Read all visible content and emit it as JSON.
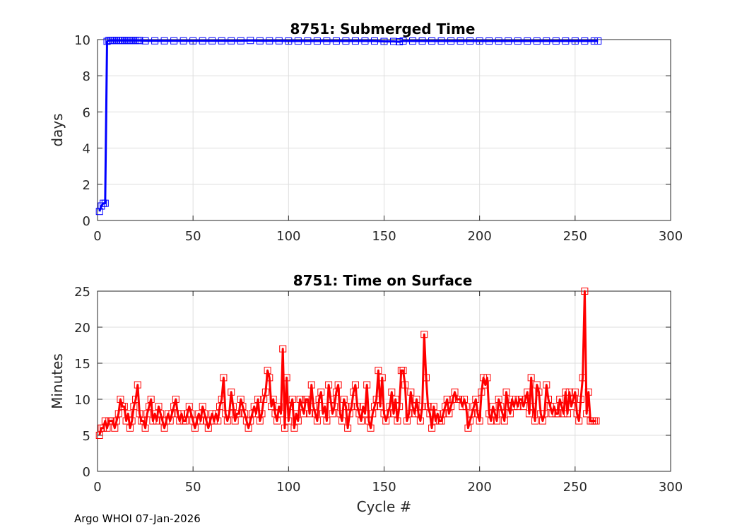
{
  "footer": "Argo WHOI 07-Jan-2026",
  "chart_data": [
    {
      "type": "line",
      "title": "8751: Submerged Time",
      "xlabel": "",
      "ylabel": "days",
      "xlim": [
        0,
        300
      ],
      "ylim": [
        0,
        10
      ],
      "xticks": [
        0,
        50,
        100,
        150,
        200,
        250,
        300
      ],
      "yticks": [
        0,
        2,
        4,
        6,
        8,
        10
      ],
      "grid": true,
      "marker": "square",
      "color": "#0000ff",
      "series": [
        {
          "x": [
            1,
            2,
            3,
            4,
            5,
            6,
            7,
            8,
            9,
            10,
            11,
            12,
            13,
            14,
            15,
            16,
            17,
            18,
            19,
            20,
            21,
            22,
            25,
            30,
            35,
            40,
            45,
            50,
            55,
            60,
            65,
            70,
            75,
            80,
            85,
            90,
            95,
            100,
            105,
            110,
            115,
            120,
            125,
            130,
            135,
            140,
            145,
            150,
            155,
            158,
            160,
            165,
            170,
            175,
            180,
            185,
            190,
            195,
            200,
            205,
            210,
            215,
            220,
            225,
            230,
            235,
            240,
            245,
            250,
            255,
            260,
            262
          ],
          "y": [
            0.5,
            0.8,
            0.95,
            0.95,
            9.9,
            9.95,
            9.95,
            9.95,
            9.95,
            9.95,
            9.95,
            9.95,
            9.95,
            9.95,
            9.95,
            9.95,
            9.95,
            9.95,
            9.95,
            9.95,
            9.95,
            9.95,
            9.93,
            9.93,
            9.93,
            9.93,
            9.93,
            9.93,
            9.93,
            9.93,
            9.93,
            9.93,
            9.93,
            9.95,
            9.93,
            9.93,
            9.93,
            9.92,
            9.92,
            9.92,
            9.92,
            9.92,
            9.92,
            9.92,
            9.92,
            9.92,
            9.92,
            9.9,
            9.9,
            9.88,
            9.92,
            9.92,
            9.92,
            9.92,
            9.92,
            9.92,
            9.92,
            9.92,
            9.92,
            9.92,
            9.92,
            9.92,
            9.92,
            9.92,
            9.92,
            9.92,
            9.92,
            9.92,
            9.92,
            9.92,
            9.92,
            9.92
          ]
        }
      ]
    },
    {
      "type": "line",
      "title": "8751: Time on Surface",
      "xlabel": "Cycle #",
      "ylabel": "Minutes",
      "xlim": [
        0,
        300
      ],
      "ylim": [
        0,
        25
      ],
      "xticks": [
        0,
        50,
        100,
        150,
        200,
        250,
        300
      ],
      "yticks": [
        0,
        5,
        10,
        15,
        20,
        25
      ],
      "grid": true,
      "marker": "square",
      "color": "#ff0000",
      "series": [
        {
          "x": [
            1,
            2,
            3,
            4,
            5,
            6,
            7,
            8,
            9,
            10,
            11,
            12,
            13,
            14,
            15,
            16,
            17,
            18,
            19,
            20,
            21,
            22,
            23,
            24,
            25,
            26,
            27,
            28,
            29,
            30,
            31,
            32,
            33,
            34,
            35,
            36,
            37,
            38,
            39,
            40,
            41,
            42,
            43,
            44,
            45,
            46,
            47,
            48,
            49,
            50,
            51,
            52,
            53,
            54,
            55,
            56,
            57,
            58,
            59,
            60,
            61,
            62,
            63,
            64,
            65,
            66,
            67,
            68,
            69,
            70,
            71,
            72,
            73,
            74,
            75,
            76,
            77,
            78,
            79,
            80,
            81,
            82,
            83,
            84,
            85,
            86,
            87,
            88,
            89,
            90,
            91,
            92,
            93,
            94,
            95,
            96,
            97,
            98,
            99,
            100,
            101,
            102,
            103,
            104,
            105,
            106,
            107,
            108,
            109,
            110,
            111,
            112,
            113,
            114,
            115,
            116,
            117,
            118,
            119,
            120,
            121,
            122,
            123,
            124,
            125,
            126,
            127,
            128,
            129,
            130,
            131,
            132,
            133,
            134,
            135,
            136,
            137,
            138,
            139,
            140,
            141,
            142,
            143,
            144,
            145,
            146,
            147,
            148,
            149,
            150,
            151,
            152,
            153,
            154,
            155,
            156,
            157,
            158,
            159,
            160,
            161,
            162,
            163,
            164,
            165,
            166,
            167,
            168,
            169,
            170,
            171,
            172,
            173,
            174,
            175,
            176,
            177,
            178,
            179,
            180,
            181,
            182,
            183,
            184,
            185,
            186,
            187,
            188,
            189,
            190,
            191,
            192,
            193,
            194,
            195,
            196,
            197,
            198,
            199,
            200,
            201,
            202,
            203,
            204,
            205,
            206,
            207,
            208,
            209,
            210,
            211,
            212,
            213,
            214,
            215,
            216,
            217,
            218,
            219,
            220,
            221,
            222,
            223,
            224,
            225,
            226,
            227,
            228,
            229,
            230,
            231,
            232,
            233,
            234,
            235,
            236,
            237,
            238,
            239,
            240,
            241,
            242,
            243,
            244,
            245,
            246,
            247,
            248,
            249,
            250,
            251,
            252,
            253,
            254,
            255,
            256,
            257,
            258,
            259,
            260,
            261
          ],
          "y": [
            5,
            6,
            6,
            7,
            6,
            7,
            7,
            7,
            6,
            7,
            8,
            10,
            9,
            9,
            7,
            8,
            6,
            7,
            9,
            10,
            12,
            8,
            7,
            7,
            6,
            8,
            9,
            10,
            7,
            8,
            7,
            9,
            8,
            7,
            6,
            7,
            8,
            7,
            8,
            9,
            10,
            8,
            7,
            8,
            7,
            7,
            8,
            9,
            8,
            7,
            6,
            7,
            8,
            7,
            9,
            8,
            7,
            6,
            7,
            8,
            7,
            8,
            7,
            9,
            10,
            13,
            8,
            7,
            8,
            11,
            9,
            7,
            8,
            8,
            10,
            9,
            8,
            7,
            6,
            7,
            8,
            9,
            8,
            10,
            7,
            8,
            10,
            11,
            14,
            13,
            9,
            10,
            8,
            7,
            9,
            8,
            17,
            6,
            13,
            7,
            9,
            10,
            6,
            8,
            7,
            10,
            9,
            8,
            10,
            10,
            8,
            12,
            9,
            8,
            7,
            10,
            11,
            8,
            9,
            7,
            12,
            10,
            8,
            9,
            11,
            12,
            8,
            7,
            10,
            9,
            6,
            8,
            9,
            11,
            12,
            9,
            8,
            7,
            9,
            8,
            12,
            7,
            6,
            8,
            9,
            10,
            14,
            9,
            13,
            8,
            7,
            8,
            9,
            11,
            8,
            10,
            7,
            9,
            14,
            14,
            12,
            7,
            8,
            11,
            9,
            8,
            10,
            8,
            7,
            9,
            19,
            13,
            9,
            8,
            6,
            9,
            7,
            8,
            7,
            7,
            8,
            9,
            10,
            8,
            9,
            10,
            11,
            10,
            10,
            10,
            9,
            10,
            9,
            6,
            7,
            8,
            9,
            10,
            8,
            7,
            11,
            13,
            12,
            13,
            8,
            7,
            9,
            8,
            7,
            10,
            9,
            8,
            7,
            11,
            9,
            8,
            10,
            9,
            10,
            9,
            10,
            10,
            9,
            10,
            11,
            8,
            13,
            9,
            7,
            12,
            11,
            8,
            7,
            8,
            12,
            10,
            9,
            8,
            9,
            8,
            8,
            10,
            9,
            8,
            11,
            8,
            11,
            9,
            10,
            11,
            8,
            7,
            10,
            13,
            25,
            8,
            11,
            7,
            7,
            7,
            7
          ]
        }
      ]
    }
  ]
}
